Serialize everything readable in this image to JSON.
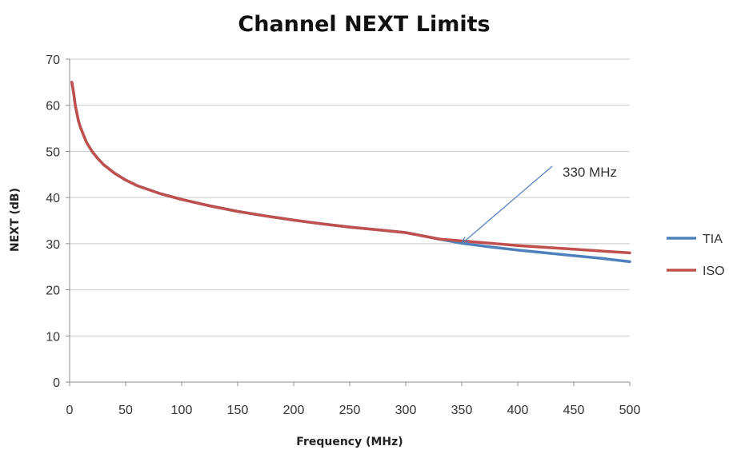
{
  "chart_data": {
    "type": "line",
    "title": "Channel NEXT Limits",
    "xlabel": "Frequency (MHz)",
    "ylabel": "NEXT (dB)",
    "xlim": [
      0,
      500
    ],
    "ylim": [
      0,
      70
    ],
    "xticks": [
      0,
      50,
      100,
      150,
      200,
      250,
      300,
      350,
      400,
      450,
      500
    ],
    "yticks": [
      0,
      10,
      20,
      30,
      40,
      50,
      60,
      70
    ],
    "grid": "horizontal",
    "legend_position": "right",
    "series": [
      {
        "name": "TIA",
        "color": "#4f81bd",
        "x": [
          2,
          4,
          5,
          8,
          10,
          15,
          20,
          25,
          30,
          40,
          50,
          60,
          80,
          100,
          125,
          150,
          175,
          200,
          225,
          250,
          275,
          300,
          330,
          350,
          375,
          400,
          425,
          450,
          475,
          500
        ],
        "y": [
          65.0,
          62.0,
          60.0,
          56.5,
          55.0,
          52.0,
          50.0,
          48.5,
          47.2,
          45.3,
          43.8,
          42.6,
          40.9,
          39.6,
          38.2,
          37.0,
          36.0,
          35.1,
          34.3,
          33.6,
          33.0,
          32.4,
          31.0,
          30.1,
          29.3,
          28.6,
          28.0,
          27.4,
          26.8,
          26.1
        ]
      },
      {
        "name": "ISO",
        "color": "#c0504d",
        "x": [
          2,
          4,
          5,
          8,
          10,
          15,
          20,
          25,
          30,
          40,
          50,
          60,
          80,
          100,
          125,
          150,
          175,
          200,
          225,
          250,
          275,
          300,
          330,
          350,
          375,
          400,
          425,
          450,
          475,
          500
        ],
        "y": [
          65.0,
          62.0,
          60.0,
          56.5,
          55.0,
          52.0,
          50.0,
          48.5,
          47.2,
          45.3,
          43.8,
          42.6,
          40.9,
          39.6,
          38.2,
          37.0,
          36.0,
          35.1,
          34.3,
          33.6,
          33.0,
          32.4,
          31.0,
          30.6,
          30.1,
          29.6,
          29.2,
          28.8,
          28.4,
          28.0
        ]
      }
    ],
    "annotations": [
      {
        "text": "330 MHz",
        "x": 350,
        "y": 30.0
      }
    ]
  }
}
